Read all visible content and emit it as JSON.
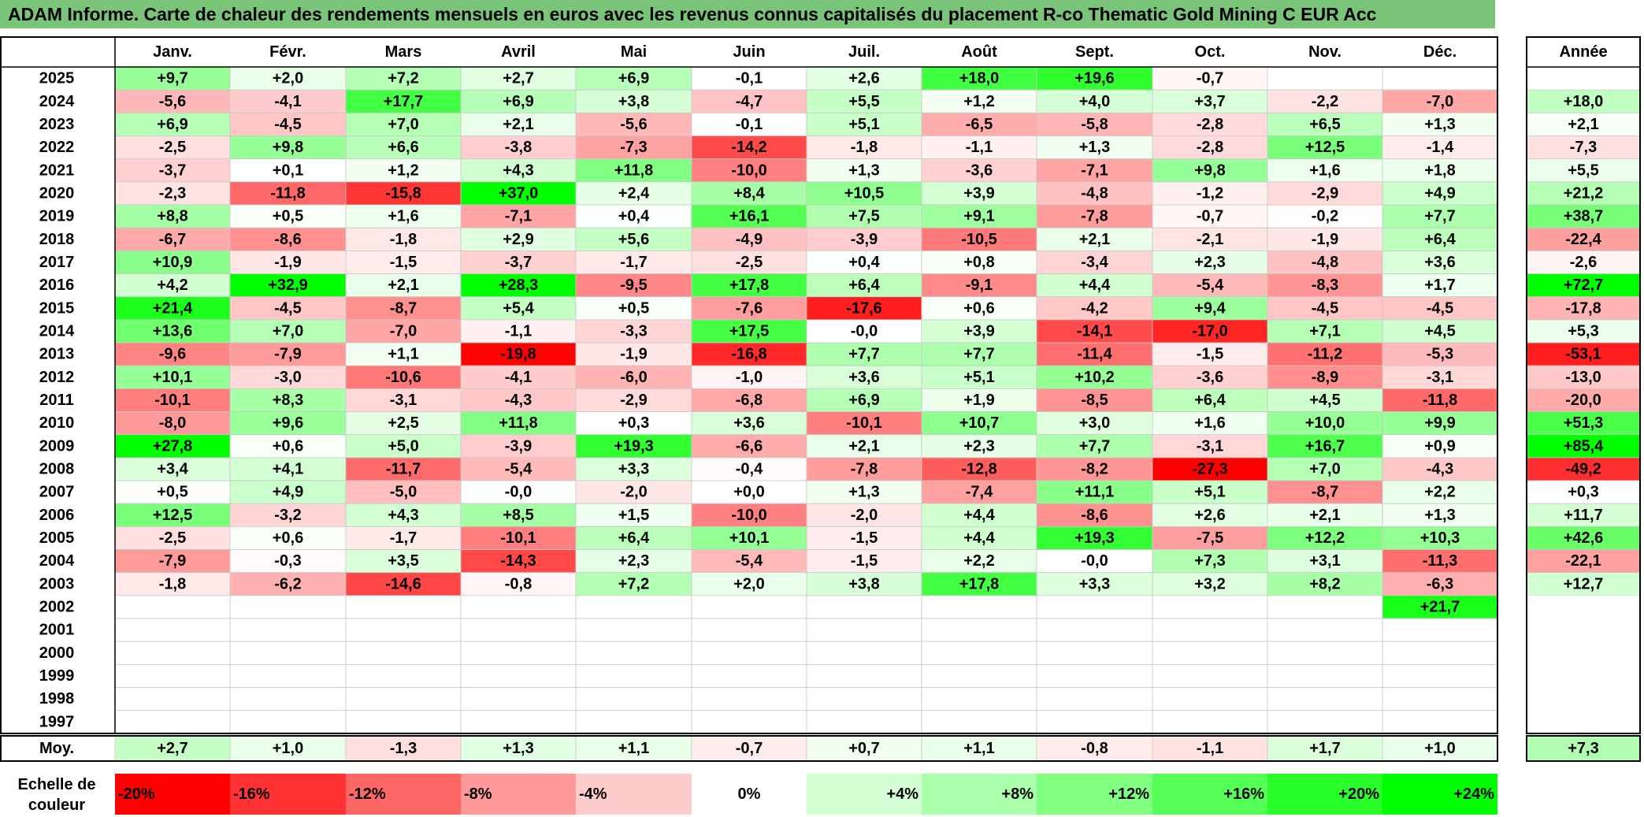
{
  "title": "ADAM Informe. Carte de chaleur des rendements mensuels en euros avec les revenus connus capitalisés du placement R-co Thematic Gold Mining C EUR Acc",
  "chart_data": {
    "type": "heatmap",
    "title": "ADAM Informe. Carte de chaleur des rendements mensuels en euros avec les revenus connus capitalisés du placement R-co Thematic Gold Mining C EUR Acc",
    "columns": [
      "Janv.",
      "Févr.",
      "Mars",
      "Avril",
      "Mai",
      "Juin",
      "Juil.",
      "Août",
      "Sept.",
      "Oct.",
      "Nov.",
      "Déc."
    ],
    "year_column_label": "Année",
    "rows": [
      {
        "year": "2025",
        "months": [
          "+9,7",
          "+2,0",
          "+7,2",
          "+2,7",
          "+6,9",
          "-0,1",
          "+2,6",
          "+18,0",
          "+19,6",
          "-0,7",
          "",
          ""
        ],
        "annual": ""
      },
      {
        "year": "2024",
        "months": [
          "-5,6",
          "-4,1",
          "+17,7",
          "+6,9",
          "+3,8",
          "-4,7",
          "+5,5",
          "+1,2",
          "+4,0",
          "+3,7",
          "-2,2",
          "-7,0"
        ],
        "annual": "+18,0"
      },
      {
        "year": "2023",
        "months": [
          "+6,9",
          "-4,5",
          "+7,0",
          "+2,1",
          "-5,6",
          "-0,1",
          "+5,1",
          "-6,5",
          "-5,8",
          "-2,8",
          "+6,5",
          "+1,3"
        ],
        "annual": "+2,1"
      },
      {
        "year": "2022",
        "months": [
          "-2,5",
          "+9,8",
          "+6,6",
          "-3,8",
          "-7,3",
          "-14,2",
          "-1,8",
          "-1,1",
          "+1,3",
          "-2,8",
          "+12,5",
          "-1,4"
        ],
        "annual": "-7,3"
      },
      {
        "year": "2021",
        "months": [
          "-3,7",
          "+0,1",
          "+1,2",
          "+4,3",
          "+11,8",
          "-10,0",
          "+1,3",
          "-3,6",
          "-7,1",
          "+9,8",
          "+1,6",
          "+1,8"
        ],
        "annual": "+5,5"
      },
      {
        "year": "2020",
        "months": [
          "-2,3",
          "-11,8",
          "-15,8",
          "+37,0",
          "+2,4",
          "+8,4",
          "+10,5",
          "+3,9",
          "-4,8",
          "-1,2",
          "-2,9",
          "+4,9"
        ],
        "annual": "+21,2"
      },
      {
        "year": "2019",
        "months": [
          "+8,8",
          "+0,5",
          "+1,6",
          "-7,1",
          "+0,4",
          "+16,1",
          "+7,5",
          "+9,1",
          "-7,8",
          "-0,7",
          "-0,2",
          "+7,7"
        ],
        "annual": "+38,7"
      },
      {
        "year": "2018",
        "months": [
          "-6,7",
          "-8,6",
          "-1,8",
          "+2,9",
          "+5,6",
          "-4,9",
          "-3,9",
          "-10,5",
          "+2,1",
          "-2,1",
          "-1,9",
          "+6,4"
        ],
        "annual": "-22,4"
      },
      {
        "year": "2017",
        "months": [
          "+10,9",
          "-1,9",
          "-1,5",
          "-3,7",
          "-1,7",
          "-2,5",
          "+0,4",
          "+0,8",
          "-3,4",
          "+2,3",
          "-4,8",
          "+3,6"
        ],
        "annual": "-2,6"
      },
      {
        "year": "2016",
        "months": [
          "+4,2",
          "+32,9",
          "+2,1",
          "+28,3",
          "-9,5",
          "+17,8",
          "+6,4",
          "-9,1",
          "+4,4",
          "-5,4",
          "-8,3",
          "+1,7"
        ],
        "annual": "+72,7"
      },
      {
        "year": "2015",
        "months": [
          "+21,4",
          "-4,5",
          "-8,7",
          "+5,4",
          "+0,5",
          "-7,6",
          "-17,6",
          "+0,6",
          "-4,2",
          "+9,4",
          "-4,5",
          "-4,5"
        ],
        "annual": "-17,8"
      },
      {
        "year": "2014",
        "months": [
          "+13,6",
          "+7,0",
          "-7,0",
          "-1,1",
          "-3,3",
          "+17,5",
          "-0,0",
          "+3,9",
          "-14,1",
          "-17,0",
          "+7,1",
          "+4,5"
        ],
        "annual": "+5,3"
      },
      {
        "year": "2013",
        "months": [
          "-9,6",
          "-7,9",
          "+1,1",
          "-19,8",
          "-1,9",
          "-16,8",
          "+7,7",
          "+7,7",
          "-11,4",
          "-1,5",
          "-11,2",
          "-5,3"
        ],
        "annual": "-53,1"
      },
      {
        "year": "2012",
        "months": [
          "+10,1",
          "-3,0",
          "-10,6",
          "-4,1",
          "-6,0",
          "-1,0",
          "+3,6",
          "+5,1",
          "+10,2",
          "-3,6",
          "-8,9",
          "-3,1"
        ],
        "annual": "-13,0"
      },
      {
        "year": "2011",
        "months": [
          "-10,1",
          "+8,3",
          "-3,1",
          "-4,3",
          "-2,9",
          "-6,8",
          "+6,9",
          "+1,9",
          "-8,5",
          "+6,4",
          "+4,5",
          "-11,8"
        ],
        "annual": "-20,0"
      },
      {
        "year": "2010",
        "months": [
          "-8,0",
          "+9,6",
          "+2,5",
          "+11,8",
          "+0,3",
          "+3,6",
          "-10,1",
          "+10,7",
          "+3,0",
          "+1,6",
          "+10,0",
          "+9,9"
        ],
        "annual": "+51,3"
      },
      {
        "year": "2009",
        "months": [
          "+27,8",
          "+0,6",
          "+5,0",
          "-3,9",
          "+19,3",
          "-6,6",
          "+2,1",
          "+2,3",
          "+7,7",
          "-3,1",
          "+16,7",
          "+0,9"
        ],
        "annual": "+85,4"
      },
      {
        "year": "2008",
        "months": [
          "+3,4",
          "+4,1",
          "-11,7",
          "-5,4",
          "+3,3",
          "-0,4",
          "-7,8",
          "-12,8",
          "-8,2",
          "-27,3",
          "+7,0",
          "-4,3"
        ],
        "annual": "-49,2"
      },
      {
        "year": "2007",
        "months": [
          "+0,5",
          "+4,9",
          "-5,0",
          "-0,0",
          "-2,0",
          "+0,0",
          "+1,3",
          "-7,4",
          "+11,1",
          "+5,1",
          "-8,7",
          "+2,2"
        ],
        "annual": "+0,3"
      },
      {
        "year": "2006",
        "months": [
          "+12,5",
          "-3,2",
          "+4,3",
          "+8,5",
          "+1,5",
          "-10,0",
          "-2,0",
          "+4,4",
          "-8,6",
          "+2,6",
          "+2,1",
          "+1,3"
        ],
        "annual": "+11,7"
      },
      {
        "year": "2005",
        "months": [
          "-2,5",
          "+0,6",
          "-1,7",
          "-10,1",
          "+6,4",
          "+10,1",
          "-1,5",
          "+4,4",
          "+19,3",
          "-7,5",
          "+12,2",
          "+10,3"
        ],
        "annual": "+42,6"
      },
      {
        "year": "2004",
        "months": [
          "-7,9",
          "-0,3",
          "+3,5",
          "-14,3",
          "+2,3",
          "-5,4",
          "-1,5",
          "+2,2",
          "-0,0",
          "+7,3",
          "+3,1",
          "-11,3"
        ],
        "annual": "-22,1"
      },
      {
        "year": "2003",
        "months": [
          "-1,8",
          "-6,2",
          "-14,6",
          "-0,8",
          "+7,2",
          "+2,0",
          "+3,8",
          "+17,8",
          "+3,3",
          "+3,2",
          "+8,2",
          "-6,3"
        ],
        "annual": "+12,7"
      },
      {
        "year": "2002",
        "months": [
          "",
          "",
          "",
          "",
          "",
          "",
          "",
          "",
          "",
          "",
          "",
          "+21,7"
        ],
        "annual": ""
      },
      {
        "year": "2001",
        "months": [
          "",
          "",
          "",
          "",
          "",
          "",
          "",
          "",
          "",
          "",
          "",
          ""
        ],
        "annual": ""
      },
      {
        "year": "2000",
        "months": [
          "",
          "",
          "",
          "",
          "",
          "",
          "",
          "",
          "",
          "",
          "",
          ""
        ],
        "annual": ""
      },
      {
        "year": "1999",
        "months": [
          "",
          "",
          "",
          "",
          "",
          "",
          "",
          "",
          "",
          "",
          "",
          ""
        ],
        "annual": ""
      },
      {
        "year": "1998",
        "months": [
          "",
          "",
          "",
          "",
          "",
          "",
          "",
          "",
          "",
          "",
          "",
          ""
        ],
        "annual": ""
      },
      {
        "year": "1997",
        "months": [
          "",
          "",
          "",
          "",
          "",
          "",
          "",
          "",
          "",
          "",
          "",
          ""
        ],
        "annual": ""
      }
    ],
    "average": {
      "label": "Moy.",
      "months": [
        "+2,7",
        "+1,0",
        "-1,3",
        "+1,3",
        "+1,1",
        "-0,7",
        "+0,7",
        "+1,1",
        "-0,8",
        "-1,1",
        "+1,7",
        "+1,0"
      ],
      "annual": "+7,3"
    },
    "color_scale": {
      "label_line1": "Echelle de",
      "label_line2": "couleur",
      "stops": [
        {
          "label": "-20%",
          "value": -20
        },
        {
          "label": "-16%",
          "value": -16
        },
        {
          "label": "-12%",
          "value": -12
        },
        {
          "label": "-8%",
          "value": -8
        },
        {
          "label": "-4%",
          "value": -4
        },
        {
          "label": "0%",
          "value": 0
        },
        {
          "label": "+4%",
          "value": 4
        },
        {
          "label": "+8%",
          "value": 8
        },
        {
          "label": "+12%",
          "value": 12
        },
        {
          "label": "+16%",
          "value": 16
        },
        {
          "label": "+20%",
          "value": 20
        },
        {
          "label": "+24%",
          "value": 24
        }
      ]
    },
    "colors": {
      "negative_max": "#ff0000",
      "neutral": "#ffffff",
      "positive_max": "#00ff00",
      "title_background": "#7ac47a"
    }
  }
}
